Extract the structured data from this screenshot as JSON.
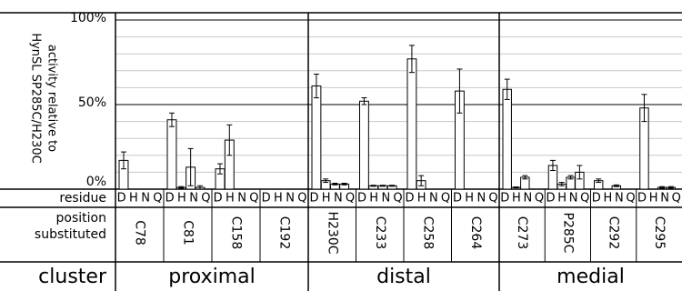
{
  "chart_data": {
    "type": "bar",
    "ylabel": "activity relative to\nHynSL SP285C/H230C",
    "y_ticks": [
      "100%",
      "50%",
      "0%"
    ],
    "ylim": [
      0,
      100
    ],
    "row_labels": {
      "residue": "residue",
      "position": "position\nsubstituted",
      "cluster": "cluster"
    },
    "residue_letters": [
      "D",
      "H",
      "N",
      "Q"
    ],
    "clusters": [
      {
        "name": "proximal",
        "positions": [
          {
            "label": "C78",
            "values": [
              17,
              null,
              null,
              null
            ],
            "errors": [
              5,
              0,
              0,
              0
            ]
          },
          {
            "label": "C81",
            "values": [
              41,
              1,
              13,
              1
            ],
            "errors": [
              4,
              0.5,
              11,
              1
            ]
          },
          {
            "label": "C158",
            "values": [
              12,
              29,
              null,
              null
            ],
            "errors": [
              3,
              9,
              0,
              0
            ]
          },
          {
            "label": "C192",
            "values": [
              null,
              null,
              null,
              null
            ],
            "errors": [
              0,
              0,
              0,
              0
            ]
          }
        ]
      },
      {
        "name": "distal",
        "positions": [
          {
            "label": "H230C",
            "values": [
              61,
              5,
              3,
              3
            ],
            "errors": [
              7,
              1,
              0.5,
              0.5
            ]
          },
          {
            "label": "C233",
            "values": [
              52,
              2,
              2,
              2
            ],
            "errors": [
              2,
              0.3,
              0.3,
              0.3
            ]
          },
          {
            "label": "C258",
            "values": [
              77,
              5,
              null,
              null
            ],
            "errors": [
              8,
              3,
              0,
              0
            ]
          },
          {
            "label": "C264",
            "values": [
              58,
              null,
              null,
              null
            ],
            "errors": [
              13,
              0,
              0,
              0
            ]
          }
        ]
      },
      {
        "name": "medial",
        "positions": [
          {
            "label": "C273",
            "values": [
              59,
              1,
              7,
              null
            ],
            "errors": [
              6,
              0.3,
              1,
              0
            ]
          },
          {
            "label": "P285C",
            "values": [
              14,
              3,
              7,
              10
            ],
            "errors": [
              3,
              1,
              1,
              4
            ]
          },
          {
            "label": "C292",
            "values": [
              5,
              null,
              2,
              null
            ],
            "errors": [
              1,
              0,
              0.5,
              0
            ]
          },
          {
            "label": "C295",
            "values": [
              48,
              null,
              1,
              1
            ],
            "errors": [
              8,
              0,
              0.5,
              0.5
            ]
          }
        ]
      }
    ]
  }
}
